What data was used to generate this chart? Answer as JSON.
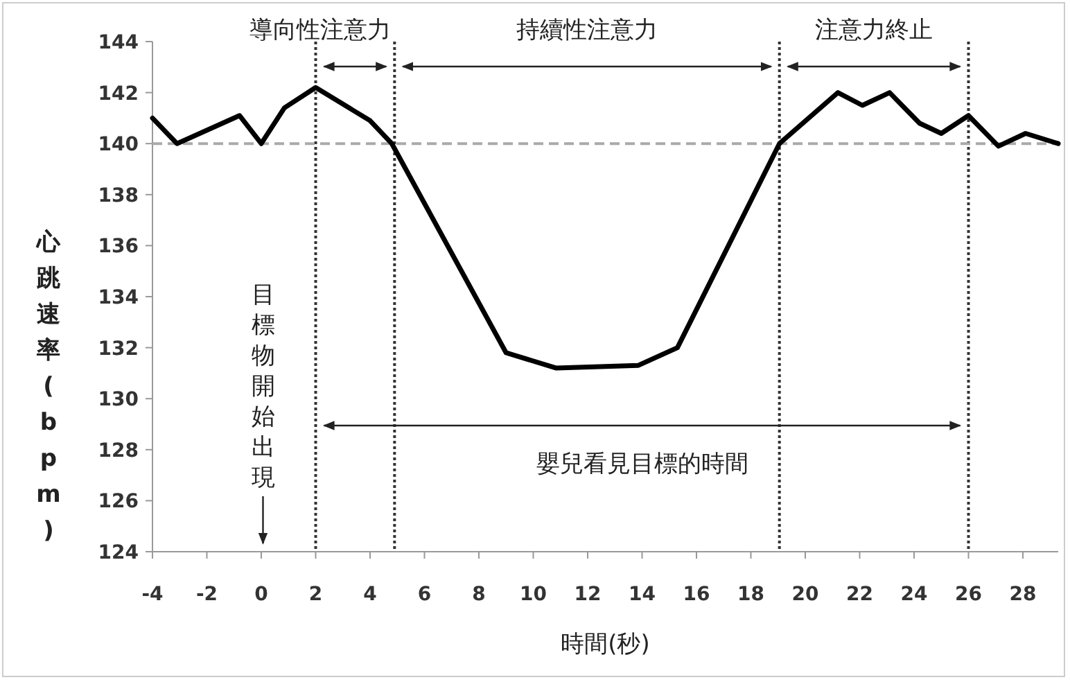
{
  "chart_data": {
    "type": "line",
    "xlabel": "時間(秒)",
    "ylabel": "心跳速率(bpm)",
    "xlim": [
      -4,
      29.3
    ],
    "xticks": [
      -4,
      -2,
      0,
      2,
      4,
      6,
      8,
      10,
      12,
      14,
      16,
      18,
      20,
      22,
      24,
      26,
      28
    ],
    "ylim": [
      124,
      144
    ],
    "yticks": [
      124,
      126,
      128,
      130,
      132,
      134,
      136,
      138,
      140,
      142,
      144
    ],
    "grid": false,
    "marker": "none",
    "line_style": "solid",
    "series": [
      {
        "color": "#000000",
        "x": [
          -4,
          -3.1,
          -0.8,
          0,
          0.85,
          2,
          4,
          4.8,
          9,
          10.85,
          13.85,
          15.3,
          19.05,
          21.2,
          22.1,
          23.1,
          24.2,
          25,
          26,
          27.1,
          28.1,
          29.3
        ],
        "values": [
          141,
          140,
          141.1,
          140,
          141.4,
          142.2,
          140.9,
          140,
          131.8,
          131.2,
          131.3,
          132,
          140,
          142,
          141.5,
          142,
          140.8,
          140.4,
          141.1,
          139.9,
          140.4,
          140
        ]
      }
    ],
    "ref_lines": [
      {
        "axis": "x",
        "value": 2,
        "color": "#333333",
        "line_style": "dotted"
      },
      {
        "axis": "x",
        "value": 4.9,
        "color": "#333333",
        "line_style": "dotted"
      },
      {
        "axis": "x",
        "value": 19.05,
        "color": "#333333",
        "line_style": "dotted"
      },
      {
        "axis": "x",
        "value": 26,
        "color": "#333333",
        "line_style": "dotted"
      },
      {
        "axis": "y",
        "value": 140,
        "color": "#aaaaaa",
        "line_style": "dashed"
      }
    ],
    "annotations": [
      "導向性注意力",
      "持續性注意力",
      "注意力終止",
      "嬰兒看見目標的時間",
      "目標物開始出現"
    ]
  }
}
